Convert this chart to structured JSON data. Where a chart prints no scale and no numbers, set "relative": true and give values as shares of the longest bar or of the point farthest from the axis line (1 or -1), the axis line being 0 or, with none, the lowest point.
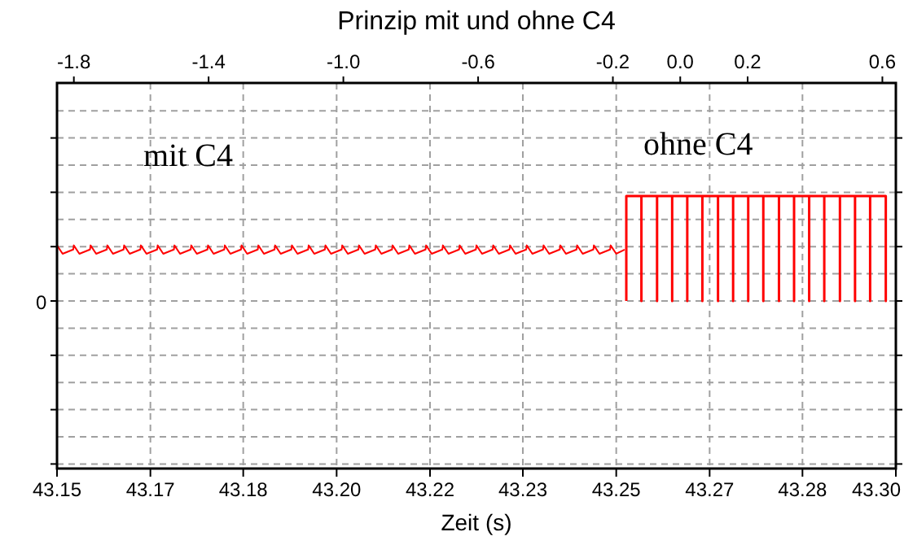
{
  "chart_data": {
    "type": "line",
    "title": "Prinzip mit und ohne C4",
    "xlabel": "Zeit (s)",
    "relative": true,
    "grid": true,
    "line_style": "solid",
    "annotations": [
      "mit C4",
      "ohne C4",
      "0"
    ],
    "xlim": [
      43.15,
      43.3
    ],
    "xticks": [
      {
        "value": 43.15,
        "label": "43.15"
      },
      {
        "value": 43.1667,
        "label": "43.17"
      },
      {
        "value": 43.1833,
        "label": "43.18"
      },
      {
        "value": 43.2,
        "label": "43.20"
      },
      {
        "value": 43.2167,
        "label": "43.22"
      },
      {
        "value": 43.2333,
        "label": "43.23"
      },
      {
        "value": 43.25,
        "label": "43.25"
      },
      {
        "value": 43.2667,
        "label": "43.27"
      },
      {
        "value": 43.2833,
        "label": "43.28"
      },
      {
        "value": 43.3,
        "label": "43.30"
      }
    ],
    "x2lim": [
      -1.85,
      0.64
    ],
    "x2ticks": [
      -1.8,
      -1.4,
      {
        "value": -1,
        "label": "-1.0"
      },
      -0.6,
      -0.2,
      {
        "value": 0,
        "label": "0.0"
      },
      0.2,
      0.6
    ],
    "series": [
      {
        "color": "#ff0000",
        "x": [
          43.15,
          43.151,
          43.1529,
          43.153,
          43.154,
          43.1559,
          43.156,
          43.157,
          43.1589,
          43.159,
          43.16,
          43.1619,
          43.162,
          43.163,
          43.1649,
          43.165,
          43.166,
          43.1679,
          43.168,
          43.169,
          43.1709,
          43.171,
          43.172,
          43.1739,
          43.174,
          43.175,
          43.1769,
          43.177,
          43.178,
          43.1799,
          43.18,
          43.181,
          43.1829,
          43.183,
          43.184,
          43.1859,
          43.186,
          43.187,
          43.1889,
          43.189,
          43.19,
          43.1919,
          43.192,
          43.193,
          43.1949,
          43.195,
          43.196,
          43.1979,
          43.198,
          43.199,
          43.2009,
          43.201,
          43.202,
          43.2039,
          43.204,
          43.205,
          43.2069,
          43.207,
          43.208,
          43.2099,
          43.21,
          43.211,
          43.2129,
          43.213,
          43.214,
          43.2159,
          43.216,
          43.217,
          43.2189,
          43.219,
          43.22,
          43.2219,
          43.222,
          43.223,
          43.2249,
          43.225,
          43.226,
          43.2279,
          43.228,
          43.229,
          43.2309,
          43.231,
          43.232,
          43.2339,
          43.234,
          43.235,
          43.2369,
          43.237,
          43.238,
          43.2399,
          43.24,
          43.241,
          43.2429,
          43.243,
          43.244,
          43.2459,
          43.246,
          43.247,
          43.2489,
          43.249,
          43.25,
          43.2515
        ],
        "values": [
          0.53,
          0.45,
          0.49,
          0.53,
          0.45,
          0.49,
          0.53,
          0.45,
          0.49,
          0.53,
          0.45,
          0.49,
          0.53,
          0.45,
          0.49,
          0.53,
          0.45,
          0.49,
          0.53,
          0.45,
          0.49,
          0.53,
          0.45,
          0.49,
          0.53,
          0.45,
          0.49,
          0.53,
          0.45,
          0.49,
          0.53,
          0.45,
          0.49,
          0.53,
          0.45,
          0.49,
          0.53,
          0.45,
          0.49,
          0.53,
          0.45,
          0.49,
          0.53,
          0.45,
          0.49,
          0.53,
          0.45,
          0.49,
          0.53,
          0.45,
          0.49,
          0.53,
          0.45,
          0.49,
          0.53,
          0.45,
          0.49,
          0.53,
          0.45,
          0.49,
          0.53,
          0.45,
          0.49,
          0.53,
          0.45,
          0.49,
          0.53,
          0.45,
          0.49,
          0.53,
          0.45,
          0.49,
          0.53,
          0.45,
          0.49,
          0.53,
          0.45,
          0.49,
          0.53,
          0.45,
          0.49,
          0.53,
          0.45,
          0.49,
          0.53,
          0.45,
          0.49,
          0.53,
          0.45,
          0.49,
          0.53,
          0.45,
          0.49,
          0.53,
          0.45,
          0.49,
          0.53,
          0.45,
          0.49,
          0.53,
          0.45,
          0.49
        ]
      },
      {
        "color": "#ff0000",
        "x": [
          43.2518,
          43.2518,
          43.2545,
          43.2545,
          43.2545,
          43.2573,
          43.2573,
          43.2573,
          43.26,
          43.26,
          43.26,
          43.2627,
          43.2627,
          43.2627,
          43.2654,
          43.2654,
          43.2654,
          43.2682,
          43.2682,
          43.2682,
          43.2709,
          43.2709,
          43.2709,
          43.2736,
          43.2736,
          43.2736,
          43.2763,
          43.2763,
          43.2763,
          43.2791,
          43.2791,
          43.2791,
          43.2818,
          43.2818,
          43.2818,
          43.2845,
          43.2845,
          43.2845,
          43.2872,
          43.2872,
          43.2872,
          43.29,
          43.29,
          43.29,
          43.2927,
          43.2927,
          43.2927,
          43.2954,
          43.2954,
          43.2954,
          43.2982,
          43.2982,
          43.2982
        ],
        "values": [
          0,
          1,
          1,
          0,
          1,
          1,
          0,
          1,
          1,
          0,
          1,
          1,
          0,
          1,
          1,
          0,
          1,
          1,
          0,
          1,
          1,
          0,
          1,
          1,
          0,
          1,
          1,
          0,
          1,
          1,
          0,
          1,
          1,
          0,
          1,
          1,
          0,
          1,
          1,
          0,
          1,
          1,
          0,
          1,
          1,
          0,
          1,
          1,
          0,
          1,
          1,
          0,
          1
        ]
      }
    ]
  }
}
